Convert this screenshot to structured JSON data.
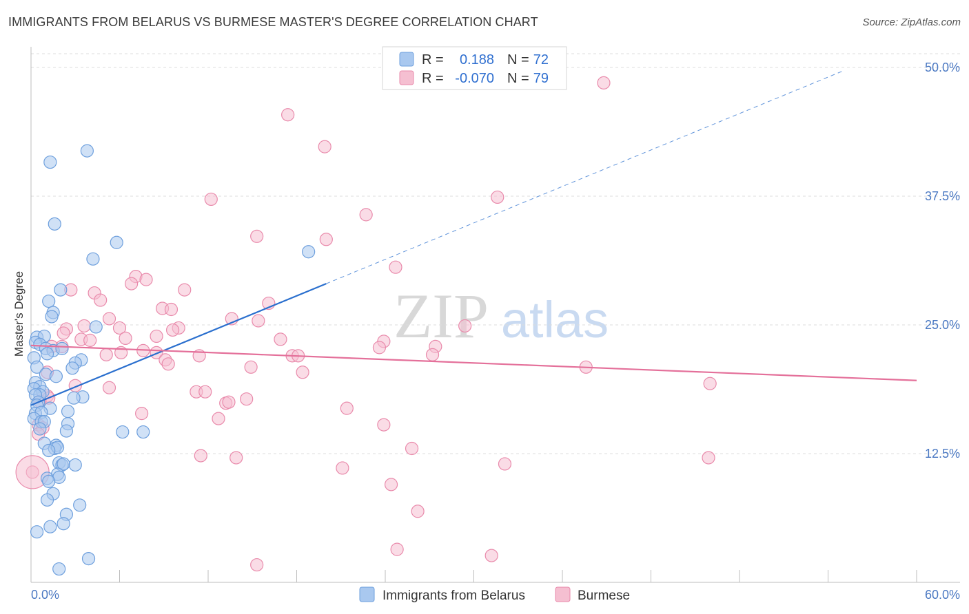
{
  "title": "IMMIGRANTS FROM BELARUS VS BURMESE MASTER'S DEGREE CORRELATION CHART",
  "source": "Source: ZipAtlas.com",
  "watermark": {
    "zip": "ZIP",
    "atlas": "atlas"
  },
  "colors": {
    "blue_fill": "#a9c8ef",
    "blue_stroke": "#6d9fdd",
    "blue_line": "#2a6fce",
    "pink_fill": "#f5bfd1",
    "pink_stroke": "#e98aab",
    "pink_line": "#e4709a",
    "axis_label": "#4a78c2",
    "grid": "#dcdcdc"
  },
  "legend": {
    "rows": [
      {
        "r_label": "R =",
        "r_value": "0.188",
        "n_label": "N =",
        "n_value": "72"
      },
      {
        "r_label": "R =",
        "r_value": "-0.070",
        "n_label": "N =",
        "n_value": "79"
      }
    ]
  },
  "chart_data": {
    "type": "scatter",
    "title": "IMMIGRANTS FROM BELARUS VS BURMESE MASTER'S DEGREE CORRELATION CHART",
    "xlabel": "",
    "ylabel": "Master's Degree",
    "xlim": [
      0,
      60
    ],
    "ylim": [
      0,
      52
    ],
    "x_tick_labels": [
      "0.0%",
      "60.0%"
    ],
    "y_ticks": [
      12.5,
      25.0,
      37.5,
      50.0
    ],
    "y_tick_labels": [
      "12.5%",
      "25.0%",
      "37.5%",
      "50.0%"
    ],
    "legend_position": "top-center",
    "series": [
      {
        "name": "Immigrants from Belarus",
        "r": 0.188,
        "n": 72,
        "trend": {
          "x0": 0,
          "y0": 17.2,
          "x1": 20,
          "y1": 29.0,
          "dash_to_x": 55
        },
        "points": [
          [
            3.8,
            41.9
          ],
          [
            1.3,
            40.8
          ],
          [
            1.6,
            34.8
          ],
          [
            5.8,
            33.0
          ],
          [
            4.2,
            31.4
          ],
          [
            18.8,
            32.1
          ],
          [
            2.0,
            28.4
          ],
          [
            1.2,
            27.3
          ],
          [
            1.5,
            26.2
          ],
          [
            1.4,
            25.8
          ],
          [
            4.4,
            24.8
          ],
          [
            0.4,
            23.8
          ],
          [
            0.9,
            23.9
          ],
          [
            0.3,
            23.3
          ],
          [
            0.6,
            23.1
          ],
          [
            1.0,
            22.7
          ],
          [
            1.5,
            22.5
          ],
          [
            2.1,
            22.7
          ],
          [
            1.1,
            22.2
          ],
          [
            0.2,
            21.8
          ],
          [
            3.4,
            21.6
          ],
          [
            3.0,
            21.3
          ],
          [
            0.4,
            20.9
          ],
          [
            2.8,
            20.8
          ],
          [
            1.0,
            20.2
          ],
          [
            1.7,
            20.0
          ],
          [
            0.3,
            19.4
          ],
          [
            0.6,
            19.0
          ],
          [
            0.2,
            18.8
          ],
          [
            0.8,
            18.5
          ],
          [
            0.6,
            18.2
          ],
          [
            0.3,
            18.2
          ],
          [
            3.5,
            18.0
          ],
          [
            2.9,
            17.9
          ],
          [
            0.5,
            17.5
          ],
          [
            0.4,
            17.2
          ],
          [
            1.3,
            16.9
          ],
          [
            0.3,
            16.4
          ],
          [
            0.7,
            16.5
          ],
          [
            2.5,
            16.6
          ],
          [
            0.2,
            15.9
          ],
          [
            0.7,
            15.6
          ],
          [
            0.9,
            15.6
          ],
          [
            2.5,
            15.4
          ],
          [
            0.6,
            14.9
          ],
          [
            2.4,
            14.7
          ],
          [
            6.2,
            14.6
          ],
          [
            7.6,
            14.6
          ],
          [
            0.9,
            13.5
          ],
          [
            1.7,
            13.3
          ],
          [
            1.6,
            13.0
          ],
          [
            1.8,
            13.1
          ],
          [
            1.2,
            12.8
          ],
          [
            1.9,
            11.6
          ],
          [
            2.1,
            11.4
          ],
          [
            2.2,
            11.5
          ],
          [
            3.0,
            11.4
          ],
          [
            1.8,
            10.5
          ],
          [
            1.9,
            10.2
          ],
          [
            1.1,
            10.1
          ],
          [
            1.2,
            9.8
          ],
          [
            1.5,
            8.6
          ],
          [
            1.1,
            8.0
          ],
          [
            3.3,
            7.5
          ],
          [
            2.4,
            6.6
          ],
          [
            2.2,
            5.7
          ],
          [
            1.3,
            5.4
          ],
          [
            0.4,
            4.9
          ],
          [
            3.9,
            2.3
          ],
          [
            1.9,
            1.3
          ]
        ]
      },
      {
        "name": "Burmese",
        "r": -0.07,
        "n": 79,
        "trend": {
          "x0": 0,
          "y0": 23.0,
          "x1": 60,
          "y1": 19.6
        },
        "points": [
          [
            38.8,
            48.5
          ],
          [
            17.4,
            45.4
          ],
          [
            19.9,
            42.3
          ],
          [
            12.2,
            37.2
          ],
          [
            31.6,
            37.4
          ],
          [
            22.7,
            35.7
          ],
          [
            15.3,
            33.6
          ],
          [
            20.0,
            33.3
          ],
          [
            24.7,
            30.6
          ],
          [
            7.1,
            29.7
          ],
          [
            7.8,
            29.4
          ],
          [
            6.8,
            29.0
          ],
          [
            10.4,
            28.4
          ],
          [
            2.7,
            28.4
          ],
          [
            4.3,
            28.1
          ],
          [
            4.7,
            27.4
          ],
          [
            16.1,
            27.1
          ],
          [
            8.9,
            26.6
          ],
          [
            9.5,
            26.5
          ],
          [
            5.3,
            25.6
          ],
          [
            13.6,
            25.6
          ],
          [
            15.4,
            25.4
          ],
          [
            2.4,
            24.6
          ],
          [
            3.6,
            24.9
          ],
          [
            6.0,
            24.7
          ],
          [
            10.0,
            24.7
          ],
          [
            9.6,
            24.5
          ],
          [
            29.4,
            24.9
          ],
          [
            2.2,
            24.2
          ],
          [
            6.4,
            23.7
          ],
          [
            8.5,
            23.9
          ],
          [
            3.4,
            23.6
          ],
          [
            4.0,
            23.5
          ],
          [
            16.9,
            23.6
          ],
          [
            23.9,
            23.4
          ],
          [
            1.4,
            22.9
          ],
          [
            2.1,
            22.9
          ],
          [
            23.6,
            22.8
          ],
          [
            27.4,
            22.9
          ],
          [
            7.6,
            22.5
          ],
          [
            8.5,
            22.3
          ],
          [
            5.1,
            22.1
          ],
          [
            6.1,
            22.3
          ],
          [
            11.4,
            22.0
          ],
          [
            17.7,
            22.0
          ],
          [
            18.1,
            22.0
          ],
          [
            27.2,
            22.1
          ],
          [
            9.1,
            21.6
          ],
          [
            9.3,
            21.2
          ],
          [
            37.6,
            20.9
          ],
          [
            14.9,
            20.9
          ],
          [
            18.4,
            20.4
          ],
          [
            1.1,
            20.4
          ],
          [
            46.0,
            19.3
          ],
          [
            3.0,
            19.1
          ],
          [
            5.3,
            18.9
          ],
          [
            11.2,
            18.5
          ],
          [
            11.8,
            18.5
          ],
          [
            1.1,
            18.1
          ],
          [
            1.2,
            17.9
          ],
          [
            14.6,
            17.8
          ],
          [
            13.2,
            17.4
          ],
          [
            13.4,
            17.5
          ],
          [
            0.6,
            17.6
          ],
          [
            21.4,
            16.9
          ],
          [
            7.5,
            16.4
          ],
          [
            12.7,
            15.9
          ],
          [
            0.5,
            15.3
          ],
          [
            23.9,
            15.3
          ],
          [
            0.8,
            15.0
          ],
          [
            0.5,
            14.4
          ],
          [
            25.8,
            13.0
          ],
          [
            11.5,
            12.3
          ],
          [
            13.9,
            12.1
          ],
          [
            45.9,
            12.1
          ],
          [
            32.1,
            11.5
          ],
          [
            21.1,
            11.1
          ],
          [
            0.1,
            10.7
          ],
          [
            24.4,
            9.5
          ],
          [
            26.2,
            6.9
          ],
          [
            24.8,
            3.2
          ],
          [
            31.2,
            2.6
          ],
          [
            15.3,
            1.7
          ]
        ]
      }
    ]
  },
  "bottom_legend": {
    "items": [
      "Immigrants from Belarus",
      "Burmese"
    ]
  }
}
